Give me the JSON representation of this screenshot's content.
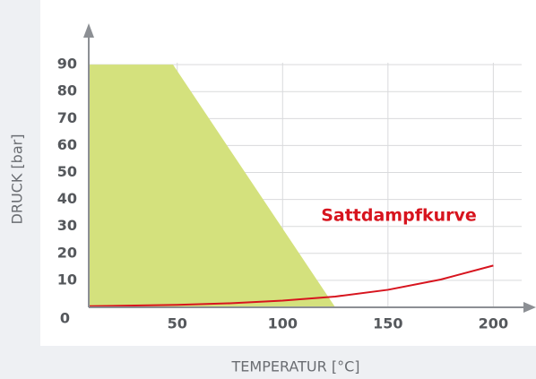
{
  "chart_data": {
    "type": "area",
    "xlabel": "TEMPERATUR [°C]",
    "ylabel": "DRUCK [bar]",
    "xlim": [
      8,
      216
    ],
    "ylim": [
      0,
      104
    ],
    "xticks": [
      50,
      100,
      150,
      200
    ],
    "yticks": [
      0,
      10,
      20,
      30,
      40,
      50,
      60,
      70,
      80,
      90
    ],
    "grid": true,
    "series": [
      {
        "type": "area",
        "color": "#d4e17d",
        "x": [
          8,
          48,
          125
        ],
        "values": [
          90,
          90,
          0
        ]
      },
      {
        "type": "line",
        "name": "Sattdampfkurve",
        "color": "#d7141e",
        "x": [
          8,
          50,
          75,
          100,
          125,
          150,
          175,
          200
        ],
        "values": [
          0.4,
          0.9,
          1.5,
          2.5,
          4,
          6.5,
          10.3,
          15.5
        ]
      }
    ]
  }
}
